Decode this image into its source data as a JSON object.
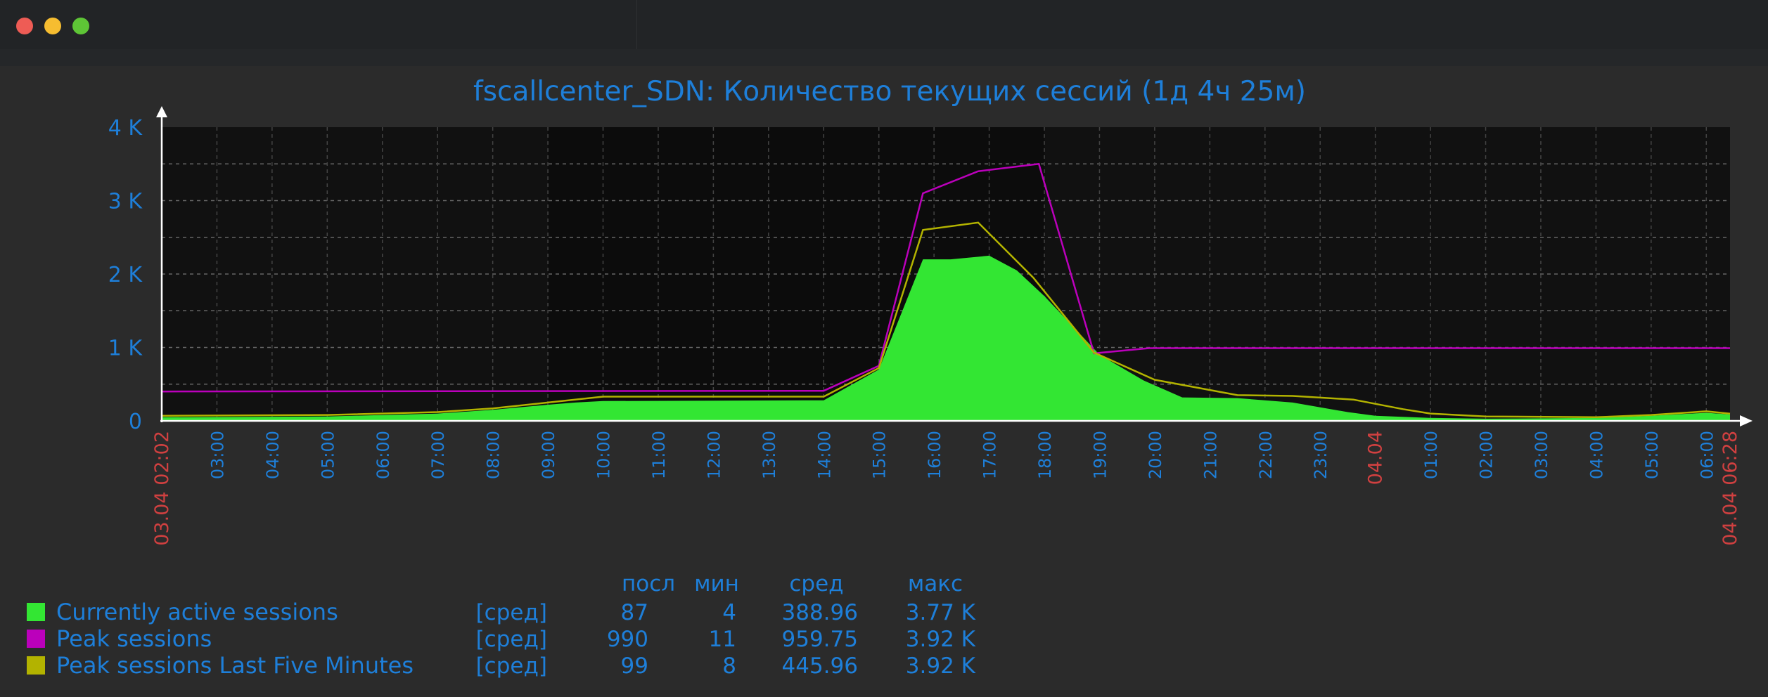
{
  "window": {
    "controls": [
      "close",
      "minimize",
      "zoom"
    ]
  },
  "chart_data": {
    "type": "area",
    "title": "fscallcenter_SDN: Количество текущих сессий (1д 4ч 25м)",
    "ylim": [
      0,
      4000
    ],
    "y_ticks": [
      "4 K",
      "3 K",
      "2 K",
      "1 K",
      "0"
    ],
    "x_ticks": [
      "03.04 02:02",
      "03:00",
      "04:00",
      "05:00",
      "06:00",
      "07:00",
      "08:00",
      "09:00",
      "10:00",
      "11:00",
      "12:00",
      "13:00",
      "14:00",
      "15:00",
      "16:00",
      "17:00",
      "18:00",
      "19:00",
      "20:00",
      "21:00",
      "22:00",
      "23:00",
      "04.04",
      "01:00",
      "02:00",
      "03:00",
      "04:00",
      "05:00",
      "06:00",
      "04.04 06:28"
    ],
    "x_tick_highlight": [
      true,
      false,
      false,
      false,
      false,
      false,
      false,
      false,
      false,
      false,
      false,
      false,
      false,
      false,
      false,
      false,
      false,
      false,
      false,
      false,
      false,
      false,
      true,
      false,
      false,
      false,
      false,
      false,
      false,
      true
    ],
    "x_hours": [
      0,
      1,
      2,
      3,
      4,
      5,
      6,
      7,
      8,
      9,
      10,
      11,
      12,
      13,
      14,
      15,
      16,
      17,
      18,
      19,
      20,
      21,
      22,
      23,
      24,
      25,
      26,
      27,
      28,
      28.43
    ],
    "series": [
      {
        "name": "Currently active sessions",
        "color": "#33e633",
        "fill": true,
        "x": [
          0,
          3,
          5,
          6,
          7,
          7.5,
          8,
          12,
          13,
          13.8,
          14.3,
          15,
          15.5,
          16,
          16.5,
          17,
          17.8,
          18.5,
          19.5,
          20.5,
          21.5,
          22,
          23,
          24,
          26,
          27,
          28,
          28.43
        ],
        "values": [
          50,
          60,
          100,
          150,
          220,
          250,
          270,
          280,
          700,
          2200,
          2200,
          2250,
          2050,
          1700,
          1300,
          900,
          550,
          320,
          310,
          250,
          120,
          70,
          40,
          30,
          40,
          70,
          110,
          87
        ]
      },
      {
        "name": "Peak sessions",
        "color": "#bb00bb",
        "fill": false,
        "x": [
          0,
          12,
          13,
          13.8,
          14.8,
          15.9,
          16.9,
          17.9,
          28.43
        ],
        "values": [
          400,
          410,
          750,
          3100,
          3400,
          3500,
          920,
          990,
          990
        ]
      },
      {
        "name": "Peak sessions Last Five Minutes",
        "color": "#b3b300",
        "fill": false,
        "x": [
          0,
          3,
          5,
          6,
          7,
          8,
          12,
          13,
          13.8,
          14.8,
          15.8,
          16.9,
          18,
          19.5,
          20.5,
          21.6,
          22.5,
          23,
          24,
          26,
          27,
          28,
          28.43
        ],
        "values": [
          70,
          80,
          120,
          170,
          250,
          330,
          330,
          720,
          2600,
          2700,
          1950,
          930,
          560,
          350,
          340,
          290,
          160,
          100,
          60,
          50,
          80,
          130,
          99
        ]
      }
    ],
    "night_shading": [
      [
        0,
        7
      ],
      [
        16,
        28.43
      ]
    ],
    "legend": {
      "headers": [
        "посл",
        "мин",
        "сред",
        "макс"
      ],
      "rows": [
        {
          "name": "Currently active sessions",
          "func": "[сред]",
          "last": "87",
          "min": "4",
          "avg": "388.96",
          "max": "3.77 K",
          "color": "#33e633"
        },
        {
          "name": "Peak sessions",
          "func": "[сред]",
          "last": "990",
          "min": "11",
          "avg": "959.75",
          "max": "3.92 K",
          "color": "#bb00bb"
        },
        {
          "name": "Peak sessions Last Five Minutes",
          "func": "[сред]",
          "last": "99",
          "min": "8",
          "avg": "445.96",
          "max": "3.92 K",
          "color": "#b3b300"
        }
      ]
    },
    "colors": {
      "text_blue": "#1e7fd9",
      "text_red": "#d04040",
      "grid": "#666666",
      "axis": "#ffffff",
      "plot_bg": "#1f1f1f",
      "night_bg": "#111111"
    }
  }
}
